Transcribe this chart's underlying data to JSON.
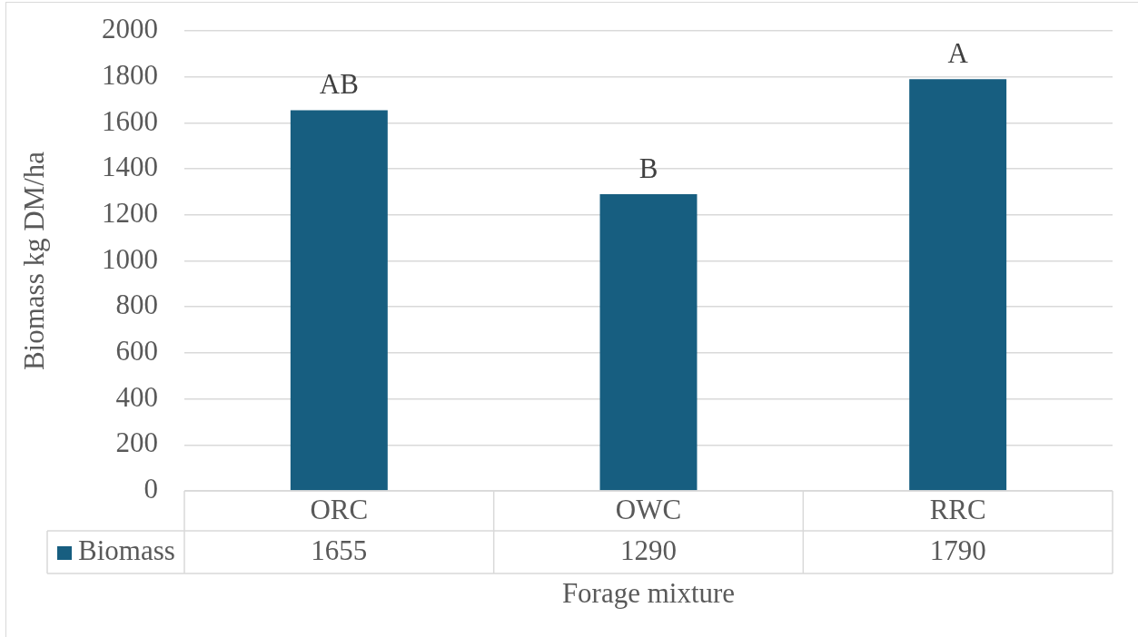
{
  "chart_data": {
    "type": "bar",
    "xlabel": "Forage mixture",
    "ylabel": "Biomass kg DM/ha",
    "categories": [
      "ORC",
      "OWC",
      "RRC"
    ],
    "series": [
      {
        "name": "Biomass",
        "color": "#175e80",
        "values": [
          1655,
          1290,
          1790
        ]
      }
    ],
    "ylim": [
      0,
      2000
    ],
    "yticks": [
      0,
      200,
      400,
      600,
      800,
      1000,
      1200,
      1400,
      1600,
      1800,
      2000
    ],
    "grid": "y",
    "legend": "bottom",
    "data_labels": true,
    "annotations": [
      {
        "text": "AB",
        "x": "ORC",
        "y": 1655
      },
      {
        "text": "B",
        "x": "OWC",
        "y": 1290
      },
      {
        "text": "A",
        "x": "RRC",
        "y": 1790
      }
    ]
  }
}
